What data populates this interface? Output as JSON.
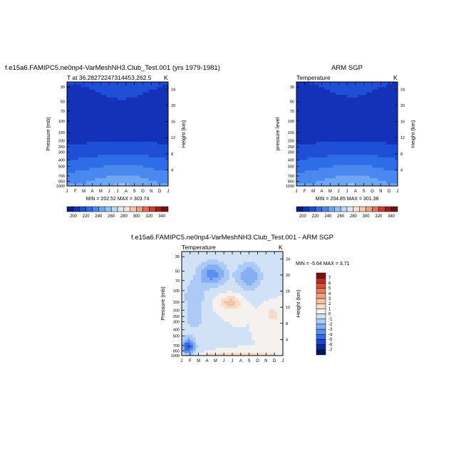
{
  "colors": {
    "abs_palette": [
      "#0a1a8f",
      "#1432b8",
      "#1e4fd6",
      "#2f6de8",
      "#4a88f0",
      "#6ea6f4",
      "#95c0f6",
      "#bcd6f7",
      "#dde8f5",
      "#f6e1d4",
      "#f6c7ad",
      "#ef9f83",
      "#e26f57",
      "#cd3d30",
      "#a81a1a",
      "#7a0f0f"
    ],
    "diff_palette": [
      "#05145e",
      "#0a2896",
      "#1e46c8",
      "#3a6ae6",
      "#5c8ef0",
      "#86aef3",
      "#adc9f5",
      "#d2e2f6",
      "#f4f1ee",
      "#f6dccb",
      "#f6c2a5",
      "#f0a184",
      "#e57b5f",
      "#d4533f",
      "#b82d24",
      "#7a0f0f"
    ]
  },
  "panels": {
    "model": {
      "title": "f.e15a6.FAMIPC5.ne0np4-VarMeshNH3.Club_Test.001 (yrs 1979-1981)",
      "subtitle_left": "T at 36.28272247314453,262.5",
      "subtitle_right": "K",
      "ylabel": "Pressure (mb)",
      "y2label": "Height (km)",
      "minmax": "MIN = 202.52  MAX = 303.74"
    },
    "obs": {
      "title": "ARM SGP",
      "subtitle_left": "Temperature",
      "subtitle_right": "K",
      "ylabel": "pressure level",
      "y2label": "Height (km)",
      "minmax": "MIN = 204.85  MAX = 301.38"
    },
    "diff": {
      "title": "f.e15a6.FAMIPC5.ne0np4-VarMeshNH3.Club_Test.001 - ARM SGP",
      "subtitle_left": "Temperature",
      "subtitle_right": "K",
      "ylabel": "Pressure (mb)",
      "y2label": "Height (km)",
      "minmax": "MIN =   -5.64  MAX =    3.71"
    }
  },
  "chart_data": [
    {
      "type": "heatmap",
      "title": "f.e15a6.FAMIPC5.ne0np4-VarMeshNH3.Club_Test.001 (yrs 1979-1981)",
      "subtitle": "T at 36.28272247314453,262.5",
      "units": "K",
      "xlabel": "",
      "ylabel": "Pressure (mb)",
      "y2label": "Height (km)",
      "x_ticks": [
        "J",
        "F",
        "M",
        "A",
        "M",
        "J",
        "J",
        "A",
        "S",
        "O",
        "N",
        "D",
        "J"
      ],
      "y_ticks": [
        30,
        50,
        70,
        100,
        150,
        200,
        250,
        300,
        400,
        500,
        700,
        850,
        1000
      ],
      "y2_ticks": [
        4,
        8,
        12,
        16,
        20,
        24
      ],
      "y_scale": "log",
      "ylim": [
        1000,
        25
      ],
      "levels": [
        200,
        220,
        240,
        260,
        280,
        300,
        320,
        340
      ],
      "colorbar_labels": [
        "200",
        "220",
        "240",
        "260",
        "280",
        "300",
        "320",
        "340"
      ],
      "min": 202.52,
      "max": 303.74,
      "pressure": [
        25,
        30,
        50,
        70,
        100,
        150,
        200,
        250,
        300,
        400,
        500,
        700,
        850,
        1000
      ],
      "profile": [
        224,
        222,
        216,
        212,
        211,
        214,
        219,
        224,
        233,
        247,
        258,
        274,
        284,
        294
      ],
      "seasonal_amplitude": [
        3,
        3,
        3,
        3,
        2,
        1,
        1,
        3,
        4,
        5,
        6,
        8,
        10,
        10
      ]
    },
    {
      "type": "heatmap",
      "title": "ARM SGP",
      "subtitle": "Temperature",
      "units": "K",
      "xlabel": "",
      "ylabel": "pressure level",
      "y2label": "Height (km)",
      "x_ticks": [
        "J",
        "F",
        "M",
        "A",
        "M",
        "J",
        "J",
        "A",
        "S",
        "O",
        "N",
        "D",
        "J"
      ],
      "y_ticks": [
        30,
        50,
        70,
        100,
        150,
        200,
        250,
        300,
        400,
        500,
        700,
        850,
        1000
      ],
      "y2_ticks": [
        4,
        8,
        12,
        16,
        20,
        24
      ],
      "y_scale": "log",
      "ylim": [
        1000,
        25
      ],
      "levels": [
        200,
        220,
        240,
        260,
        280,
        300,
        320,
        340
      ],
      "colorbar_labels": [
        "200",
        "220",
        "240",
        "260",
        "280",
        "300",
        "320",
        "340"
      ],
      "min": 204.85,
      "max": 301.38,
      "pressure": [
        25,
        30,
        50,
        70,
        100,
        150,
        200,
        250,
        300,
        400,
        500,
        700,
        850,
        1000
      ],
      "profile": [
        223,
        221,
        215,
        210,
        209,
        213,
        219,
        224,
        233,
        247,
        258,
        274,
        284,
        293
      ],
      "seasonal_amplitude": [
        3,
        3,
        3,
        4,
        3,
        1,
        1,
        3,
        4,
        5,
        6,
        8,
        10,
        10
      ]
    },
    {
      "type": "heatmap",
      "title": "f.e15a6.FAMIPC5.ne0np4-VarMeshNH3.Club_Test.001 - ARM SGP",
      "subtitle": "Temperature",
      "units": "K",
      "xlabel": "",
      "ylabel": "Pressure (mb)",
      "y2label": "Height (km)",
      "x_ticks": [
        "J",
        "F",
        "M",
        "A",
        "M",
        "J",
        "J",
        "A",
        "S",
        "O",
        "N",
        "D",
        "J"
      ],
      "y_ticks": [
        30,
        50,
        70,
        100,
        150,
        200,
        250,
        300,
        400,
        500,
        700,
        850,
        1000
      ],
      "y2_ticks": [
        4,
        8,
        12,
        16,
        20,
        24
      ],
      "y_scale": "log",
      "ylim": [
        1000,
        25
      ],
      "levels": [
        -7,
        -6,
        -5,
        -4,
        -3,
        -2,
        -1,
        0,
        1,
        2,
        3,
        4,
        5,
        6,
        7
      ],
      "colorbar_labels": [
        "-7",
        "-6",
        "-5",
        "-4",
        "-3",
        "-2",
        "-1",
        "0",
        "1",
        "2",
        "3",
        "4",
        "5",
        "6",
        "7"
      ],
      "min": -5.64,
      "max": 3.71
    }
  ]
}
